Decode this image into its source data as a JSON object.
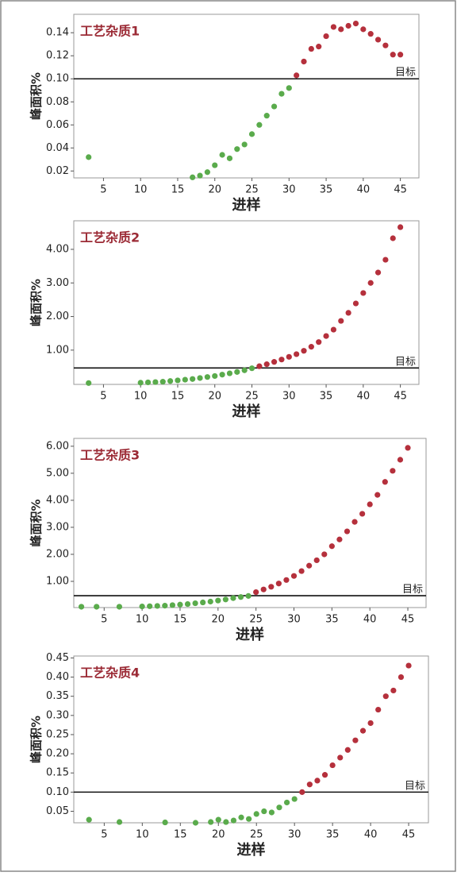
{
  "chart_data": [
    {
      "type": "scatter",
      "title": "工艺杂质1",
      "x_label": "进样",
      "y_label": "峰面积%",
      "color_below": "#5aab4c",
      "color_above": "#b5303c",
      "target": {
        "value": 0.1,
        "label": "目标"
      },
      "x": [
        3,
        17,
        18,
        19,
        20,
        21,
        22,
        23,
        24,
        25,
        26,
        27,
        28,
        29,
        30,
        31,
        32,
        33,
        34,
        35,
        36,
        37,
        38,
        39,
        40,
        41,
        42,
        43,
        44,
        45
      ],
      "values": [
        0.032,
        0.0145,
        0.016,
        0.019,
        0.025,
        0.034,
        0.031,
        0.039,
        0.043,
        0.052,
        0.06,
        0.068,
        0.076,
        0.087,
        0.092,
        0.103,
        0.115,
        0.126,
        0.128,
        0.137,
        0.145,
        0.143,
        0.146,
        0.148,
        0.143,
        0.139,
        0.134,
        0.129,
        0.121,
        0.121
      ],
      "xlim": [
        1,
        47.5
      ],
      "ylim": [
        0.014,
        0.156
      ],
      "xticks": [
        5,
        10,
        15,
        20,
        25,
        30,
        35,
        40,
        45
      ],
      "yticks": [
        0.02,
        0.04,
        0.06,
        0.08,
        {
          "value": 0.1,
          "label": "0.10"
        },
        0.12,
        0.14
      ]
    },
    {
      "type": "scatter",
      "title": "工艺杂质2",
      "x_label": "进样",
      "y_label": "峰面积%",
      "color_below": "#5aab4c",
      "color_above": "#b5303c",
      "target": {
        "value": 0.47,
        "label": "目标"
      },
      "x": [
        3,
        10,
        11,
        12,
        13,
        14,
        15,
        16,
        17,
        18,
        19,
        20,
        21,
        22,
        23,
        24,
        25,
        26,
        27,
        28,
        29,
        30,
        31,
        32,
        33,
        34,
        35,
        36,
        37,
        38,
        39,
        40,
        41,
        42,
        43,
        44,
        45
      ],
      "values": [
        0.02,
        0.03,
        0.04,
        0.05,
        0.06,
        0.08,
        0.1,
        0.12,
        0.14,
        0.17,
        0.2,
        0.23,
        0.27,
        0.31,
        0.35,
        0.4,
        0.46,
        0.52,
        0.58,
        0.65,
        0.72,
        0.8,
        0.88,
        0.98,
        1.1,
        1.24,
        1.42,
        1.61,
        1.87,
        2.11,
        2.39,
        2.7,
        3.0,
        3.31,
        3.69,
        4.33,
        4.66
      ],
      "xlim": [
        1,
        47.5
      ],
      "ylim": [
        -0.02,
        4.85
      ],
      "xticks": [
        5,
        10,
        15,
        20,
        25,
        30,
        35,
        40,
        45
      ],
      "yticks": [
        {
          "value": 1,
          "label": "1.00"
        },
        {
          "value": 2,
          "label": "2.00"
        },
        {
          "value": 3,
          "label": "3.00"
        },
        {
          "value": 4,
          "label": "4.00"
        }
      ]
    },
    {
      "type": "scatter",
      "title": "工艺杂质3",
      "x_label": "进样",
      "y_label": "峰面积%",
      "color_below": "#5aab4c",
      "color_above": "#b5303c",
      "target": {
        "value": 0.47,
        "label": "目标"
      },
      "x": [
        2,
        4,
        7,
        10,
        11,
        12,
        13,
        14,
        15,
        16,
        17,
        18,
        19,
        20,
        21,
        22,
        23,
        24,
        25,
        26,
        27,
        28,
        29,
        30,
        31,
        32,
        33,
        34,
        35,
        36,
        37,
        38,
        39,
        40,
        41,
        42,
        43,
        44,
        45
      ],
      "values": [
        0.06,
        0.06,
        0.06,
        0.07,
        0.08,
        0.09,
        0.1,
        0.12,
        0.14,
        0.16,
        0.19,
        0.22,
        0.25,
        0.29,
        0.33,
        0.38,
        0.42,
        0.46,
        0.6,
        0.7,
        0.8,
        0.92,
        1.05,
        1.2,
        1.38,
        1.58,
        1.78,
        2.0,
        2.3,
        2.55,
        2.85,
        3.2,
        3.5,
        3.85,
        4.2,
        4.68,
        5.09,
        5.5,
        5.94
      ],
      "xlim": [
        1,
        47.4
      ],
      "ylim": [
        0.03,
        6.29
      ],
      "xticks": [
        5,
        10,
        15,
        20,
        25,
        30,
        35,
        40,
        45
      ],
      "yticks": [
        {
          "value": 1,
          "label": "1.00"
        },
        {
          "value": 2,
          "label": "2.00"
        },
        {
          "value": 3,
          "label": "3.00"
        },
        {
          "value": 4,
          "label": "4.00"
        },
        {
          "value": 5,
          "label": "5.00"
        },
        {
          "value": 6,
          "label": "6.00"
        }
      ]
    },
    {
      "type": "scatter",
      "title": "工艺杂质4",
      "x_label": "进样",
      "y_label": "峰面积%",
      "color_below": "#5aab4c",
      "color_above": "#b5303c",
      "target": {
        "value": 0.1,
        "label": "目标"
      },
      "x": [
        3,
        7,
        13,
        17,
        19,
        20,
        21,
        22,
        23,
        24,
        25,
        26,
        27,
        28,
        29,
        30,
        31,
        32,
        33,
        34,
        35,
        36,
        37,
        38,
        39,
        40,
        41,
        42,
        43,
        44,
        45
      ],
      "values": [
        0.028,
        0.022,
        0.021,
        0.02,
        0.022,
        0.028,
        0.022,
        0.026,
        0.034,
        0.03,
        0.043,
        0.05,
        0.047,
        0.06,
        0.073,
        0.082,
        0.1,
        0.12,
        0.13,
        0.145,
        0.17,
        0.19,
        0.21,
        0.235,
        0.26,
        0.28,
        0.315,
        0.35,
        0.365,
        0.4,
        0.43
      ],
      "xlim": [
        1,
        47.6
      ],
      "ylim": [
        0.02,
        0.455
      ],
      "xticks": [
        5,
        10,
        15,
        20,
        25,
        30,
        35,
        40,
        45
      ],
      "yticks": [
        0.05,
        {
          "value": 0.1,
          "label": "0.10"
        },
        0.15,
        {
          "value": 0.2,
          "label": "0.20"
        },
        0.25,
        {
          "value": 0.3,
          "label": "0.30"
        },
        0.35,
        {
          "value": 0.4,
          "label": "0.40"
        },
        0.45
      ]
    }
  ]
}
